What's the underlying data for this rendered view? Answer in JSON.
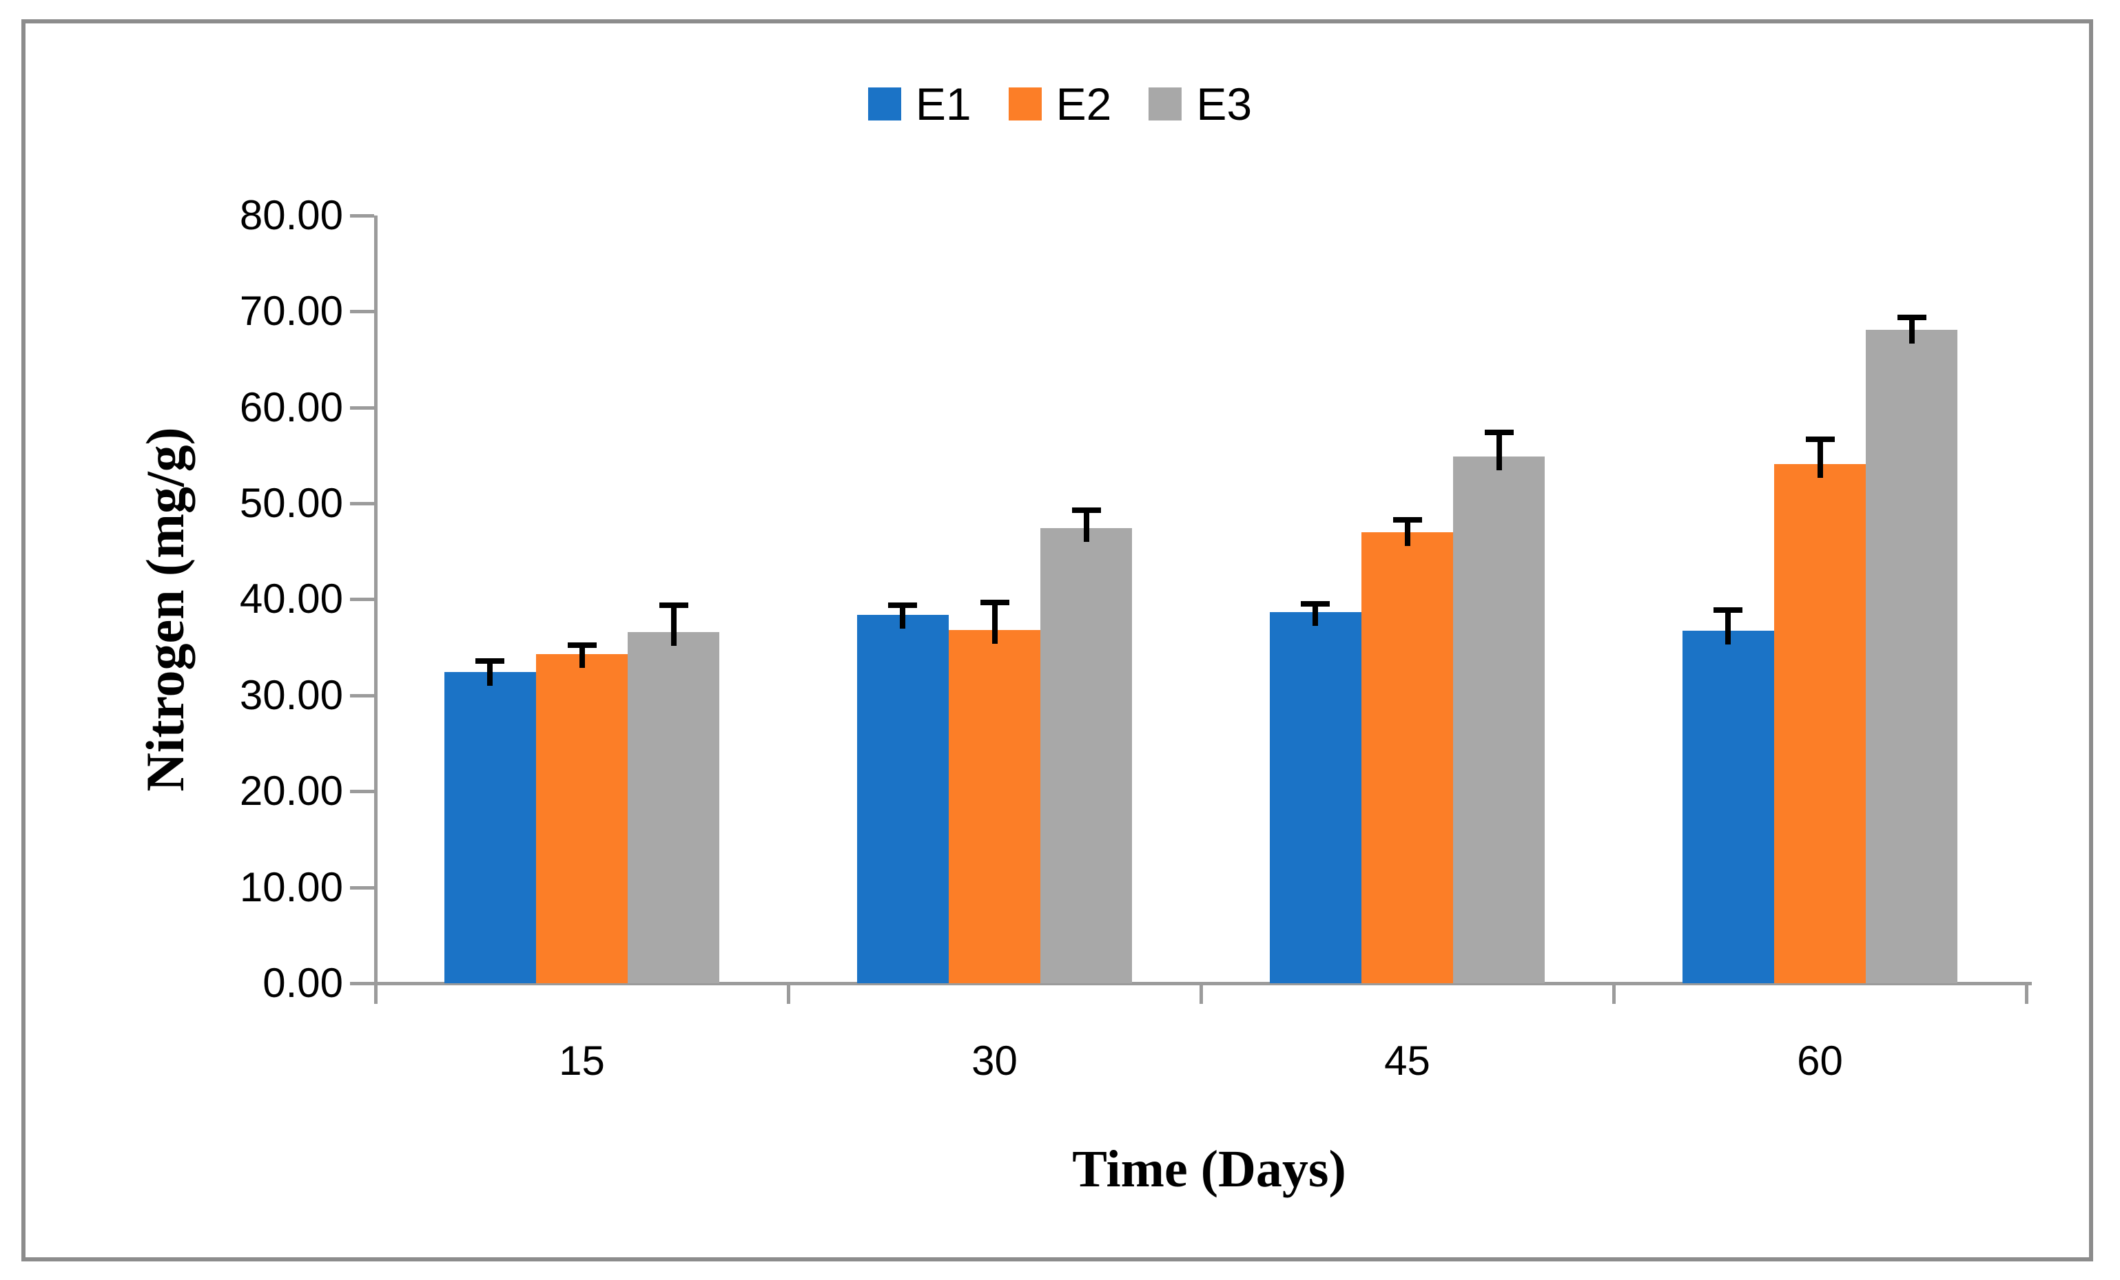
{
  "figure": {
    "background": "#FFFFFF",
    "border_color": "#8C8C8C"
  },
  "chart_data": {
    "type": "bar",
    "title": "",
    "xlabel": "Time (Days)",
    "ylabel": "Nitrogen (mg/g)",
    "categories": [
      "15",
      "30",
      "45",
      "60"
    ],
    "series": [
      {
        "name": "E1",
        "color": "#1B73C6",
        "values": [
          32.4,
          38.4,
          38.7,
          36.7
        ],
        "errors": [
          1.2,
          1.0,
          0.8,
          2.2
        ]
      },
      {
        "name": "E2",
        "color": "#FC7E27",
        "values": [
          34.3,
          36.8,
          47.0,
          54.1
        ],
        "errors": [
          0.9,
          2.9,
          1.3,
          2.6
        ]
      },
      {
        "name": "E3",
        "color": "#A8A8A8",
        "values": [
          36.6,
          47.4,
          54.9,
          68.1
        ],
        "errors": [
          2.8,
          1.9,
          2.5,
          1.3
        ]
      }
    ],
    "ylim": [
      0,
      80
    ],
    "ytick_step": 10,
    "ytick_labels": [
      "0.00",
      "10.00",
      "20.00",
      "30.00",
      "40.00",
      "50.00",
      "60.00",
      "70.00",
      "80.00"
    ],
    "legend_position": "top-center",
    "legend_entries": [
      "E1",
      "E2",
      "E3"
    ],
    "grid": false,
    "error_bars": true,
    "error_bar_color": "#000000",
    "axis_color": "#9B9B9B"
  }
}
